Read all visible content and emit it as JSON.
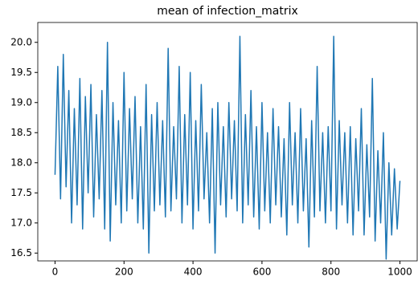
{
  "chart_data": {
    "type": "line",
    "title": "mean of infection_matrix",
    "x": [
      0,
      8,
      16,
      24,
      32,
      40,
      48,
      56,
      64,
      72,
      80,
      88,
      96,
      104,
      112,
      120,
      128,
      136,
      144,
      152,
      160,
      168,
      176,
      184,
      192,
      200,
      208,
      216,
      224,
      232,
      240,
      248,
      256,
      264,
      272,
      280,
      288,
      296,
      304,
      312,
      320,
      328,
      336,
      344,
      352,
      360,
      368,
      376,
      384,
      392,
      400,
      408,
      416,
      424,
      432,
      440,
      448,
      456,
      464,
      472,
      480,
      488,
      496,
      504,
      512,
      520,
      528,
      536,
      544,
      552,
      560,
      568,
      576,
      584,
      592,
      600,
      608,
      616,
      624,
      632,
      640,
      648,
      656,
      664,
      672,
      680,
      688,
      696,
      704,
      712,
      720,
      728,
      736,
      744,
      752,
      760,
      768,
      776,
      784,
      792,
      800,
      808,
      816,
      824,
      832,
      840,
      848,
      856,
      864,
      872,
      880,
      888,
      896,
      904,
      912,
      920,
      928,
      936,
      944,
      952,
      960,
      968,
      976,
      984,
      992,
      1000
    ],
    "series": [
      {
        "color": "#1f77b4",
        "values": [
          17.8,
          19.6,
          17.4,
          19.8,
          17.6,
          19.2,
          17.0,
          18.9,
          17.3,
          19.4,
          16.9,
          19.1,
          17.5,
          19.3,
          17.1,
          18.8,
          17.4,
          19.2,
          16.9,
          20.0,
          16.7,
          19.0,
          17.3,
          18.7,
          17.0,
          19.5,
          17.2,
          18.9,
          17.4,
          19.1,
          17.0,
          18.6,
          16.9,
          19.3,
          16.5,
          18.8,
          17.2,
          19.0,
          17.3,
          18.7,
          17.1,
          19.9,
          17.2,
          18.6,
          17.4,
          19.6,
          17.0,
          18.8,
          17.3,
          19.5,
          16.9,
          18.7,
          17.2,
          19.3,
          17.4,
          18.5,
          17.0,
          18.9,
          16.5,
          19.0,
          17.3,
          18.6,
          17.1,
          19.0,
          17.4,
          18.7,
          17.2,
          20.1,
          17.0,
          18.8,
          17.3,
          19.2,
          17.1,
          18.6,
          16.9,
          19.0,
          17.2,
          18.5,
          17.0,
          18.9,
          17.3,
          18.6,
          17.1,
          18.4,
          16.8,
          19.0,
          17.3,
          18.5,
          17.0,
          18.9,
          17.2,
          18.4,
          16.6,
          18.7,
          17.1,
          19.6,
          17.2,
          18.5,
          17.0,
          18.6,
          17.2,
          20.1,
          16.9,
          18.7,
          17.3,
          18.5,
          17.0,
          18.6,
          16.8,
          18.4,
          17.2,
          18.9,
          16.8,
          18.3,
          17.1,
          19.4,
          16.7,
          18.2,
          17.0,
          18.5,
          16.4,
          18.0,
          16.8,
          17.9,
          16.9,
          17.7
        ]
      }
    ],
    "xlim": [
      -50,
      1050
    ],
    "xticks": [
      0,
      200,
      400,
      600,
      800,
      1000
    ],
    "ylim": [
      16.37,
      20.33
    ],
    "yticks": [
      16.5,
      {
        "value": 17,
        "label": "17.0"
      },
      17.5,
      {
        "value": 18,
        "label": "18.0"
      },
      18.5,
      {
        "value": 19,
        "label": "19.0"
      },
      19.5,
      {
        "value": 20,
        "label": "20.0"
      }
    ]
  }
}
